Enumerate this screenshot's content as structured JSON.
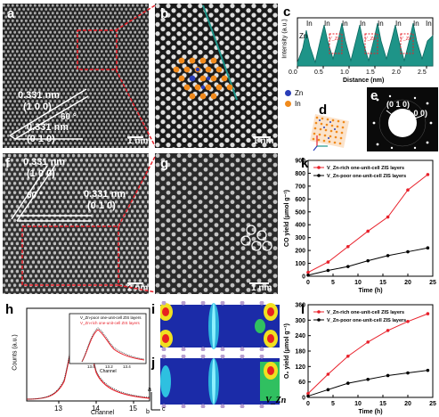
{
  "panel_labels": {
    "a": "a",
    "b": "b",
    "c": "c",
    "d": "d",
    "e": "e",
    "f": "f",
    "g": "g",
    "h": "h",
    "i": "i",
    "j": "j",
    "k": "k",
    "l": "l"
  },
  "panel_a": {
    "dist1": "0.331 nm",
    "plane1": "(1 0 0)",
    "angle": "60 °",
    "dist2": "0.331 nm",
    "plane2": "(0 1 0)",
    "scale": "1 nm"
  },
  "panel_b": {
    "scale": "1 nm"
  },
  "panel_c": {
    "element_labels": [
      "Zn",
      "In",
      "In",
      "In",
      "In",
      "In",
      "In",
      "In",
      "In"
    ],
    "vacancy_labels": [
      "V_Zn",
      "V_Zn",
      "V_Zn"
    ],
    "ylabel": "Intensity (a.u.)",
    "xlabel": "Distance (nm)",
    "xticks": [
      "0.0",
      "0.5",
      "1.0",
      "1.5",
      "2.0",
      "2.5"
    ]
  },
  "panel_d": {
    "legend": [
      {
        "label": "Zn",
        "color": "#2a3eb8"
      },
      {
        "label": "In",
        "color": "#f08a1c"
      }
    ]
  },
  "panel_e": {
    "plane1": "(0 1 0)",
    "plane2": "(1 0 0)"
  },
  "panel_f": {
    "dist1": "0.331 nm",
    "plane1": "(1 0 0)",
    "angle": "60 °",
    "dist2": "0.331 nm",
    "plane2": "(0 1 0)",
    "scale": "2 nm"
  },
  "panel_g": {
    "scale": "1 nm"
  },
  "panel_h": {
    "ylabel": "Counts (a.u.)",
    "xlabel": "Channel",
    "xticks": [
      "13",
      "14",
      "15"
    ],
    "inset_legend": [
      "V_Zn-poor one-unit-cell ZIS layers",
      "V_Zn-rich one-unit-cell ZIS layers"
    ],
    "inset_xlabel": "Channel",
    "inset_xticks": [
      "13.0",
      "13.2",
      "13.4"
    ]
  },
  "panel_ij": {
    "axes": {
      "a": "a",
      "b": "b",
      "c": "c"
    },
    "vacancy": "V_Zn"
  },
  "chart_data": [
    {
      "type": "line",
      "panel": "k",
      "title": "",
      "xlabel": "Time (h)",
      "ylabel": "CO yield (μmol g⁻¹)",
      "xlim": [
        0,
        25
      ],
      "ylim": [
        0,
        900
      ],
      "xticks": [
        "0",
        "5",
        "10",
        "15",
        "20",
        "25"
      ],
      "yticks": [
        "0",
        "100",
        "200",
        "300",
        "400",
        "500",
        "600",
        "700",
        "800",
        "900"
      ],
      "x": [
        0,
        4,
        8,
        12,
        16,
        20,
        24
      ],
      "series": [
        {
          "name": "V_Zn-rich one-unit-cell ZIS layers",
          "color": "#e8202a",
          "marker": "circle",
          "values": [
            30,
            110,
            230,
            350,
            460,
            670,
            790
          ]
        },
        {
          "name": "V_Zn-poor one-unit-cell ZIS layers",
          "color": "#000000",
          "marker": "circle",
          "values": [
            8,
            45,
            75,
            120,
            160,
            190,
            220
          ]
        }
      ],
      "legend": "top-left"
    },
    {
      "type": "line",
      "panel": "l",
      "title": "",
      "xlabel": "Time (h)",
      "ylabel": "O₂ yield (μmol g⁻¹)",
      "xlim": [
        0,
        25
      ],
      "ylim": [
        0,
        360
      ],
      "xticks": [
        "0",
        "5",
        "10",
        "15",
        "20",
        "25"
      ],
      "yticks": [
        "0",
        "60",
        "120",
        "180",
        "240",
        "300",
        "360"
      ],
      "x": [
        0,
        4,
        8,
        12,
        16,
        20,
        24
      ],
      "series": [
        {
          "name": "V_Zn-rich one-unit-cell ZIS layers",
          "color": "#e8202a",
          "marker": "circle",
          "values": [
            15,
            90,
            160,
            215,
            260,
            295,
            325
          ]
        },
        {
          "name": "V_Zn-poor one-unit-cell ZIS layers",
          "color": "#000000",
          "marker": "circle",
          "values": [
            5,
            30,
            55,
            70,
            85,
            95,
            105
          ]
        }
      ],
      "legend": "top-left"
    }
  ],
  "colors": {
    "red": "#e8202a",
    "teal": "#1e9488",
    "zn": "#2a3eb8",
    "in": "#f08a1c"
  }
}
